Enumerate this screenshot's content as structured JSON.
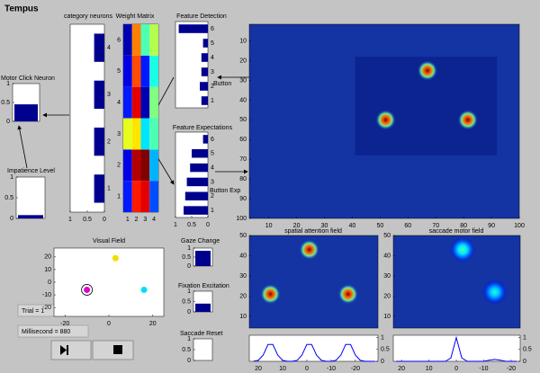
{
  "title": "Tempus",
  "category_neurons": {
    "label": "category neurons",
    "xlim": [
      0,
      1
    ],
    "x_reversed": true,
    "xticks": [
      1,
      0.5,
      0
    ],
    "ylim": [
      0.5,
      4.5
    ],
    "yticks": [
      1,
      2,
      3,
      4
    ],
    "values": [
      0.3,
      0.3,
      0.3,
      0.3
    ],
    "color": "#00008f"
  },
  "weight_matrix": {
    "label": "Weight Matrix",
    "colormap": "jet",
    "xlim": [
      0.5,
      4.5
    ],
    "xticks": [
      1,
      2,
      3,
      4
    ],
    "ylim": [
      0.5,
      6.5
    ],
    "yticks": [
      1,
      2,
      3,
      4,
      5,
      6
    ],
    "values": [
      [
        0.15,
        0.85,
        0.9,
        0.2
      ],
      [
        0.1,
        0.95,
        1.0,
        0.3
      ],
      [
        0.6,
        0.65,
        0.35,
        0.45
      ],
      [
        0.15,
        0.9,
        0.05,
        0.5
      ],
      [
        0.1,
        0.8,
        0.15,
        0.4
      ],
      [
        0.05,
        0.75,
        0.45,
        0.55
      ]
    ]
  },
  "feature_detection": {
    "label": "Feature Detection",
    "annotation": "Button",
    "xlim": [
      0,
      1
    ],
    "x_reversed": true,
    "ylim": [
      0.5,
      6.5
    ],
    "yticks": [
      1,
      2,
      3,
      4,
      5,
      6
    ],
    "values": [
      0.2,
      0.25,
      0.2,
      0.2,
      0.15,
      0.9
    ],
    "color": "#00008f"
  },
  "feature_expectations": {
    "label": "Feature Expectations",
    "annotation": "Button Exp",
    "xlim": [
      0,
      1
    ],
    "x_reversed": true,
    "xticks": [
      1,
      0.5,
      0
    ],
    "ylim": [
      0.5,
      6.5
    ],
    "yticks": [
      1,
      2,
      3,
      4,
      5,
      6
    ],
    "values": [
      0.75,
      0.7,
      0.65,
      0.55,
      0.5,
      0.15
    ],
    "color": "#00008f"
  },
  "motor_click_neuron": {
    "label": "Motor Click Neuron",
    "ylim": [
      0,
      1
    ],
    "yticks": [
      0,
      0.5,
      1
    ],
    "value": 0.45,
    "color": "#00008f"
  },
  "impatience_level": {
    "label": "Impatience Level",
    "ylim": [
      0,
      1
    ],
    "yticks": [
      0,
      0.5,
      1
    ],
    "value": 0.08,
    "color": "#00008f"
  },
  "gaze_change": {
    "label": "Gaze Change",
    "ylim": [
      0,
      1
    ],
    "yticks": [
      0,
      0.5,
      1
    ],
    "value": 0.85,
    "color": "#00008f"
  },
  "fixation_excitation": {
    "label": "Fixation Excitation",
    "ylim": [
      0,
      1
    ],
    "yticks": [
      0,
      0.5,
      1
    ],
    "value": 0.4,
    "color": "#00008f"
  },
  "saccade_reset": {
    "label": "Saccade Reset",
    "ylim": [
      0,
      1
    ],
    "yticks": [
      0,
      0.5,
      1
    ],
    "value": 0,
    "color": "#00008f"
  },
  "visual_field": {
    "label": "Visual Field",
    "xlim": [
      -25,
      25
    ],
    "xticks": [
      -20,
      0,
      20
    ],
    "ylim": [
      -27,
      27
    ],
    "yticks": [
      -20,
      -10,
      0,
      10,
      20
    ],
    "points": [
      {
        "x": 3,
        "y": 19,
        "color": "#f0e000"
      },
      {
        "x": 16,
        "y": -6,
        "color": "#00e0f0"
      },
      {
        "x": -10,
        "y": -6,
        "color": "#e000d0",
        "ring_color": "#000000"
      }
    ]
  },
  "trial": "Trial = 1",
  "millisecond": "Millisecond = 880",
  "attention_map": {
    "xlim": [
      3,
      100
    ],
    "xticks": [
      10,
      20,
      30,
      40,
      50,
      60,
      70,
      80,
      90,
      100
    ],
    "ylim": [
      1.5,
      100
    ],
    "y_reversed": true,
    "yticks": [
      10,
      20,
      30,
      40,
      50,
      60,
      70,
      80,
      90,
      100
    ],
    "background": "#1434a4",
    "region": {
      "x": [
        41,
        92
      ],
      "y": [
        18,
        68
      ],
      "color": "#0c2490"
    },
    "blobs": [
      {
        "x": 67,
        "y": 25,
        "strength": 1
      },
      {
        "x": 52,
        "y": 50,
        "strength": 1
      },
      {
        "x": 81.5,
        "y": 50,
        "strength": 1
      }
    ]
  },
  "spatial_attention_field": {
    "label": "spatial attention field",
    "xlim": [
      -29.3,
      23.7
    ],
    "x_reversed": true,
    "ylim": [
      4.2,
      50
    ],
    "yticks": [
      10,
      20,
      30,
      40,
      50
    ],
    "background": "#1434a4",
    "blobs": [
      {
        "x": -1,
        "y": 43,
        "strength": 1
      },
      {
        "x": 15,
        "y": 21,
        "strength": 1
      },
      {
        "x": -17,
        "y": 21,
        "strength": 1
      }
    ],
    "profile": {
      "xlim": [
        -29.3,
        23.7
      ],
      "x_reversed": true,
      "xticks": [
        20,
        10,
        0,
        -10,
        -20
      ],
      "ylim": [
        0,
        1.1
      ],
      "yticks": [
        0,
        0.5,
        1
      ],
      "color": "#0000ff",
      "x": [
        22,
        20,
        18,
        16,
        14,
        12,
        10,
        8,
        6,
        4,
        2,
        0,
        -2,
        -4,
        -6,
        -8,
        -10,
        -12,
        -14,
        -16,
        -18,
        -20,
        -22,
        -24,
        -26,
        -28
      ],
      "values": [
        0,
        0.04,
        0.26,
        0.71,
        0.71,
        0.26,
        0.04,
        0,
        0,
        0.04,
        0.26,
        0.71,
        0.71,
        0.26,
        0.04,
        0,
        0,
        0.04,
        0.26,
        0.71,
        0.71,
        0.26,
        0.04,
        0,
        0,
        0
      ]
    }
  },
  "saccade_motor_field": {
    "label": "saccade motor field",
    "xlim": [
      -23.3,
      23
    ],
    "x_reversed": true,
    "ylim": [
      4.2,
      50
    ],
    "yticks": [
      10,
      20,
      30,
      40,
      50
    ],
    "background": "#1434a4",
    "blobs": [
      {
        "x": -2.3,
        "y": 43,
        "strength": 0.45
      },
      {
        "x": -14,
        "y": 22,
        "strength": 0.4
      }
    ],
    "profile": {
      "xlim": [
        -23.3,
        23
      ],
      "x_reversed": true,
      "xticks": [
        20,
        10,
        0,
        -10,
        -20
      ],
      "ylim": [
        0,
        1.1
      ],
      "yticks": [
        0,
        0.5,
        1
      ],
      "color": "#0000ff",
      "x": [
        22,
        20,
        18,
        16,
        14,
        12,
        10,
        8,
        6,
        4,
        2,
        0,
        -2,
        -4,
        -6,
        -8,
        -10,
        -12,
        -14,
        -16,
        -18,
        -20,
        -22
      ],
      "values": [
        0,
        0,
        0,
        0,
        0,
        0,
        0,
        0,
        0,
        0,
        0.14,
        1.0,
        0.14,
        0,
        0,
        0,
        0,
        0.05,
        0.08,
        0.05,
        0,
        0,
        0
      ]
    }
  }
}
